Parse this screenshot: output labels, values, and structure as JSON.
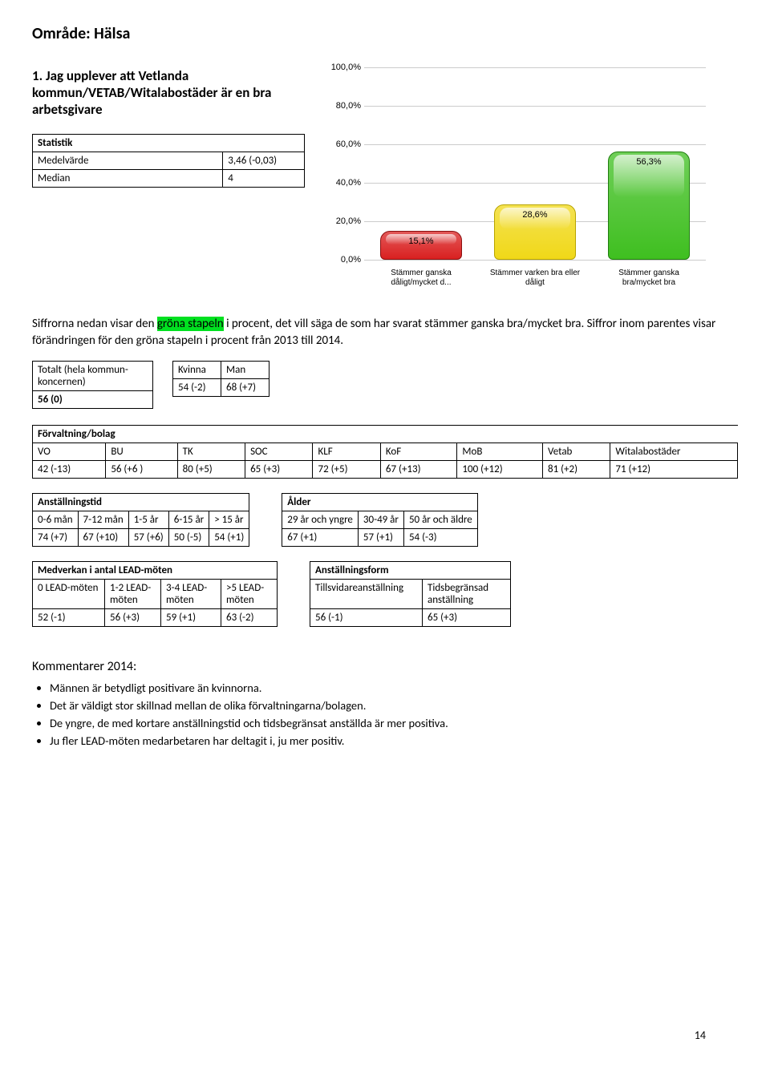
{
  "page_title": "Område: Hälsa",
  "question": "1. Jag upplever att Vetlanda kommun/VETAB/Witalabostäder är en bra arbetsgivare",
  "stat_table": {
    "header": "Statistik",
    "rows": [
      {
        "label": "Medelvärde",
        "value": "3,46 (-0,03)"
      },
      {
        "label": "Median",
        "value": "4"
      }
    ]
  },
  "intro": {
    "part1": "Siffrorna nedan visar den ",
    "highlight": "gröna stapeln",
    "part2": " i procent, det vill säga de som har svarat stämmer ganska bra/mycket bra. Siffror inom parentes visar förändringen för den gröna stapeln i procent från 2013 till 2014."
  },
  "totals": {
    "total_label": "Totalt (hela kommun-koncernen)",
    "total_value": "56 (0)",
    "gender_headers": [
      "Kvinna",
      "Man"
    ],
    "gender_values": [
      "54 (-2)",
      "68 (+7)"
    ]
  },
  "forvaltning": {
    "title": "Förvaltning/bolag",
    "headers": [
      "VO",
      "BU",
      "TK",
      "SOC",
      "KLF",
      "KoF",
      "MoB",
      "Vetab",
      "Witalabostäder"
    ],
    "values": [
      "42 (-13)",
      "56 (+6 )",
      "80 (+5)",
      "65 (+3)",
      "72 (+5)",
      "67 (+13)",
      "100 (+12)",
      "81 (+2)",
      "71 (+12)"
    ]
  },
  "anst_tid": {
    "title": "Anställningstid",
    "headers": [
      "0-6 mån",
      "7-12 mån",
      "1-5 år",
      "6-15 år",
      "> 15 år"
    ],
    "values": [
      "74 (+7)",
      "67 (+10)",
      "57 (+6)",
      "50 (-5)",
      "54 (+1)"
    ]
  },
  "alder": {
    "title": "Ålder",
    "headers": [
      "29 år och yngre",
      "30-49 år",
      "50 år och äldre"
    ],
    "values": [
      "67 (+1)",
      "57 (+1)",
      "54 (-3)"
    ]
  },
  "lead": {
    "title": "Medverkan i antal LEAD-möten",
    "headers": [
      "0 LEAD-möten",
      "1-2 LEAD-möten",
      "3-4 LEAD-möten",
      ">5 LEAD-möten"
    ],
    "values": [
      "52 (-1)",
      "56 (+3)",
      "59 (+1)",
      "63 (-2)"
    ]
  },
  "anst_form": {
    "title": "Anställningsform",
    "headers": [
      "Tillsvidareanställning",
      "Tidsbegränsad anställning"
    ],
    "values": [
      "56 (-1)",
      "65 (+3)"
    ]
  },
  "comments": {
    "title": "Kommentarer 2014:",
    "items": [
      "Männen är betydligt positivare än kvinnorna.",
      "Det är väldigt stor skillnad mellan de olika förvaltningarna/bolagen.",
      "De yngre, de med kortare anställningstid och tidsbegränsat anställda är mer positiva.",
      "Ju fler LEAD-möten medarbetaren har deltagit i, ju mer positiv."
    ]
  },
  "chart": {
    "type": "bar",
    "ylim": [
      0,
      100
    ],
    "ytick_step": 20,
    "ytick_labels": [
      "0,0%",
      "20,0%",
      "40,0%",
      "60,0%",
      "80,0%",
      "100,0%"
    ],
    "grid_color": "#cccccc",
    "background": "#ffffff",
    "bars": [
      {
        "label": "Stämmer ganska dåligt/mycket d...",
        "value": 15.1,
        "value_label": "15,1%",
        "fill": "#d92020",
        "border": "#8a0f0f"
      },
      {
        "label": "Stämmer varken bra eller dåligt",
        "value": 28.6,
        "value_label": "28,6%",
        "fill": "#f0d818",
        "border": "#b8a400"
      },
      {
        "label": "Stämmer ganska bra/mycket bra",
        "value": 56.3,
        "value_label": "56,3%",
        "fill": "#3fbf20",
        "border": "#1f7c0e"
      }
    ],
    "label_fontsize": 10,
    "value_fontsize": 11
  },
  "page_number": "14"
}
